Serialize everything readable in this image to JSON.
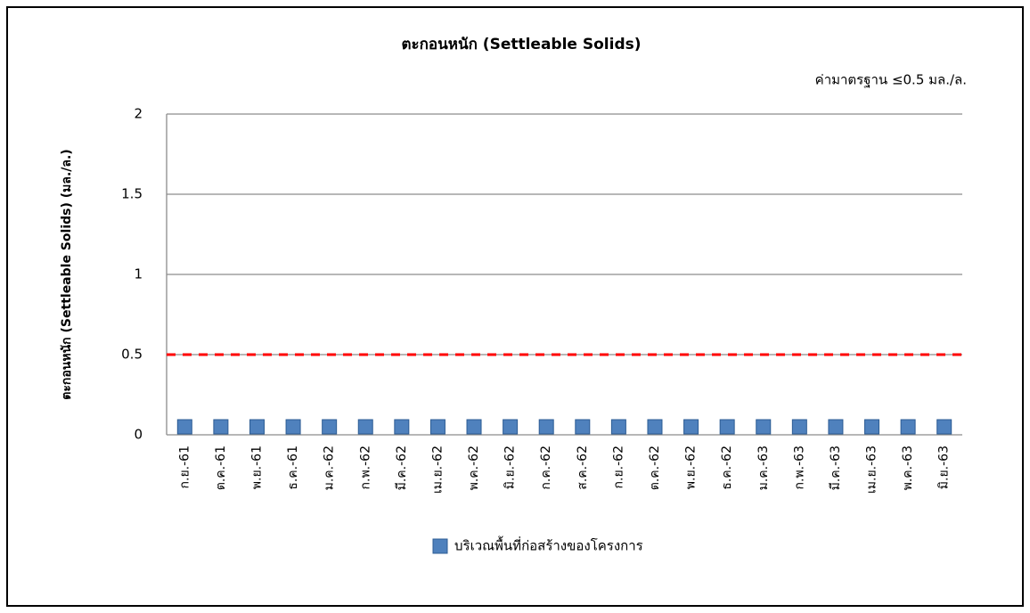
{
  "chart_data": {
    "type": "line",
    "title": "ตะกอนหนัก (Settleable Solids)",
    "annotation": "ค่ามาตรฐาน ≤0.5 มล./ล.",
    "y_label": "ตะกอนหนัก (Settleable Solids) (มล./ล.)",
    "categories": [
      "ก.ย.-61",
      "ต.ค.-61",
      "พ.ย.-61",
      "ธ.ค.-61",
      "ม.ค.-62",
      "ก.พ.-62",
      "มี.ค.-62",
      "เม.ย.-62",
      "พ.ค.-62",
      "มิ.ย.-62",
      "ก.ค.-62",
      "ส.ค.-62",
      "ก.ย.-62",
      "ต.ค.-62",
      "พ.ย.-62",
      "ธ.ค.-62",
      "ม.ค.-63",
      "ก.พ.-63",
      "มี.ค.-63",
      "เม.ย.-63",
      "พ.ค.-63",
      "มิ.ย.-63"
    ],
    "series": [
      {
        "name": "บริเวณพื้นที่ก่อสร้างของโครงการ",
        "color": "#4f81bd",
        "values": [
          0.05,
          0.05,
          0.05,
          0.05,
          0.05,
          0.05,
          0.05,
          0.05,
          0.05,
          0.05,
          0.05,
          0.05,
          0.05,
          0.05,
          0.05,
          0.05,
          0.05,
          0.05,
          0.05,
          0.05,
          0.05,
          0.05
        ]
      }
    ],
    "standard": {
      "value": 0.5,
      "color": "#ff0000"
    },
    "ylim": [
      0,
      2
    ],
    "yticks": [
      0,
      0.5,
      1,
      1.5,
      2
    ],
    "grid": true,
    "legend": "bottom"
  }
}
